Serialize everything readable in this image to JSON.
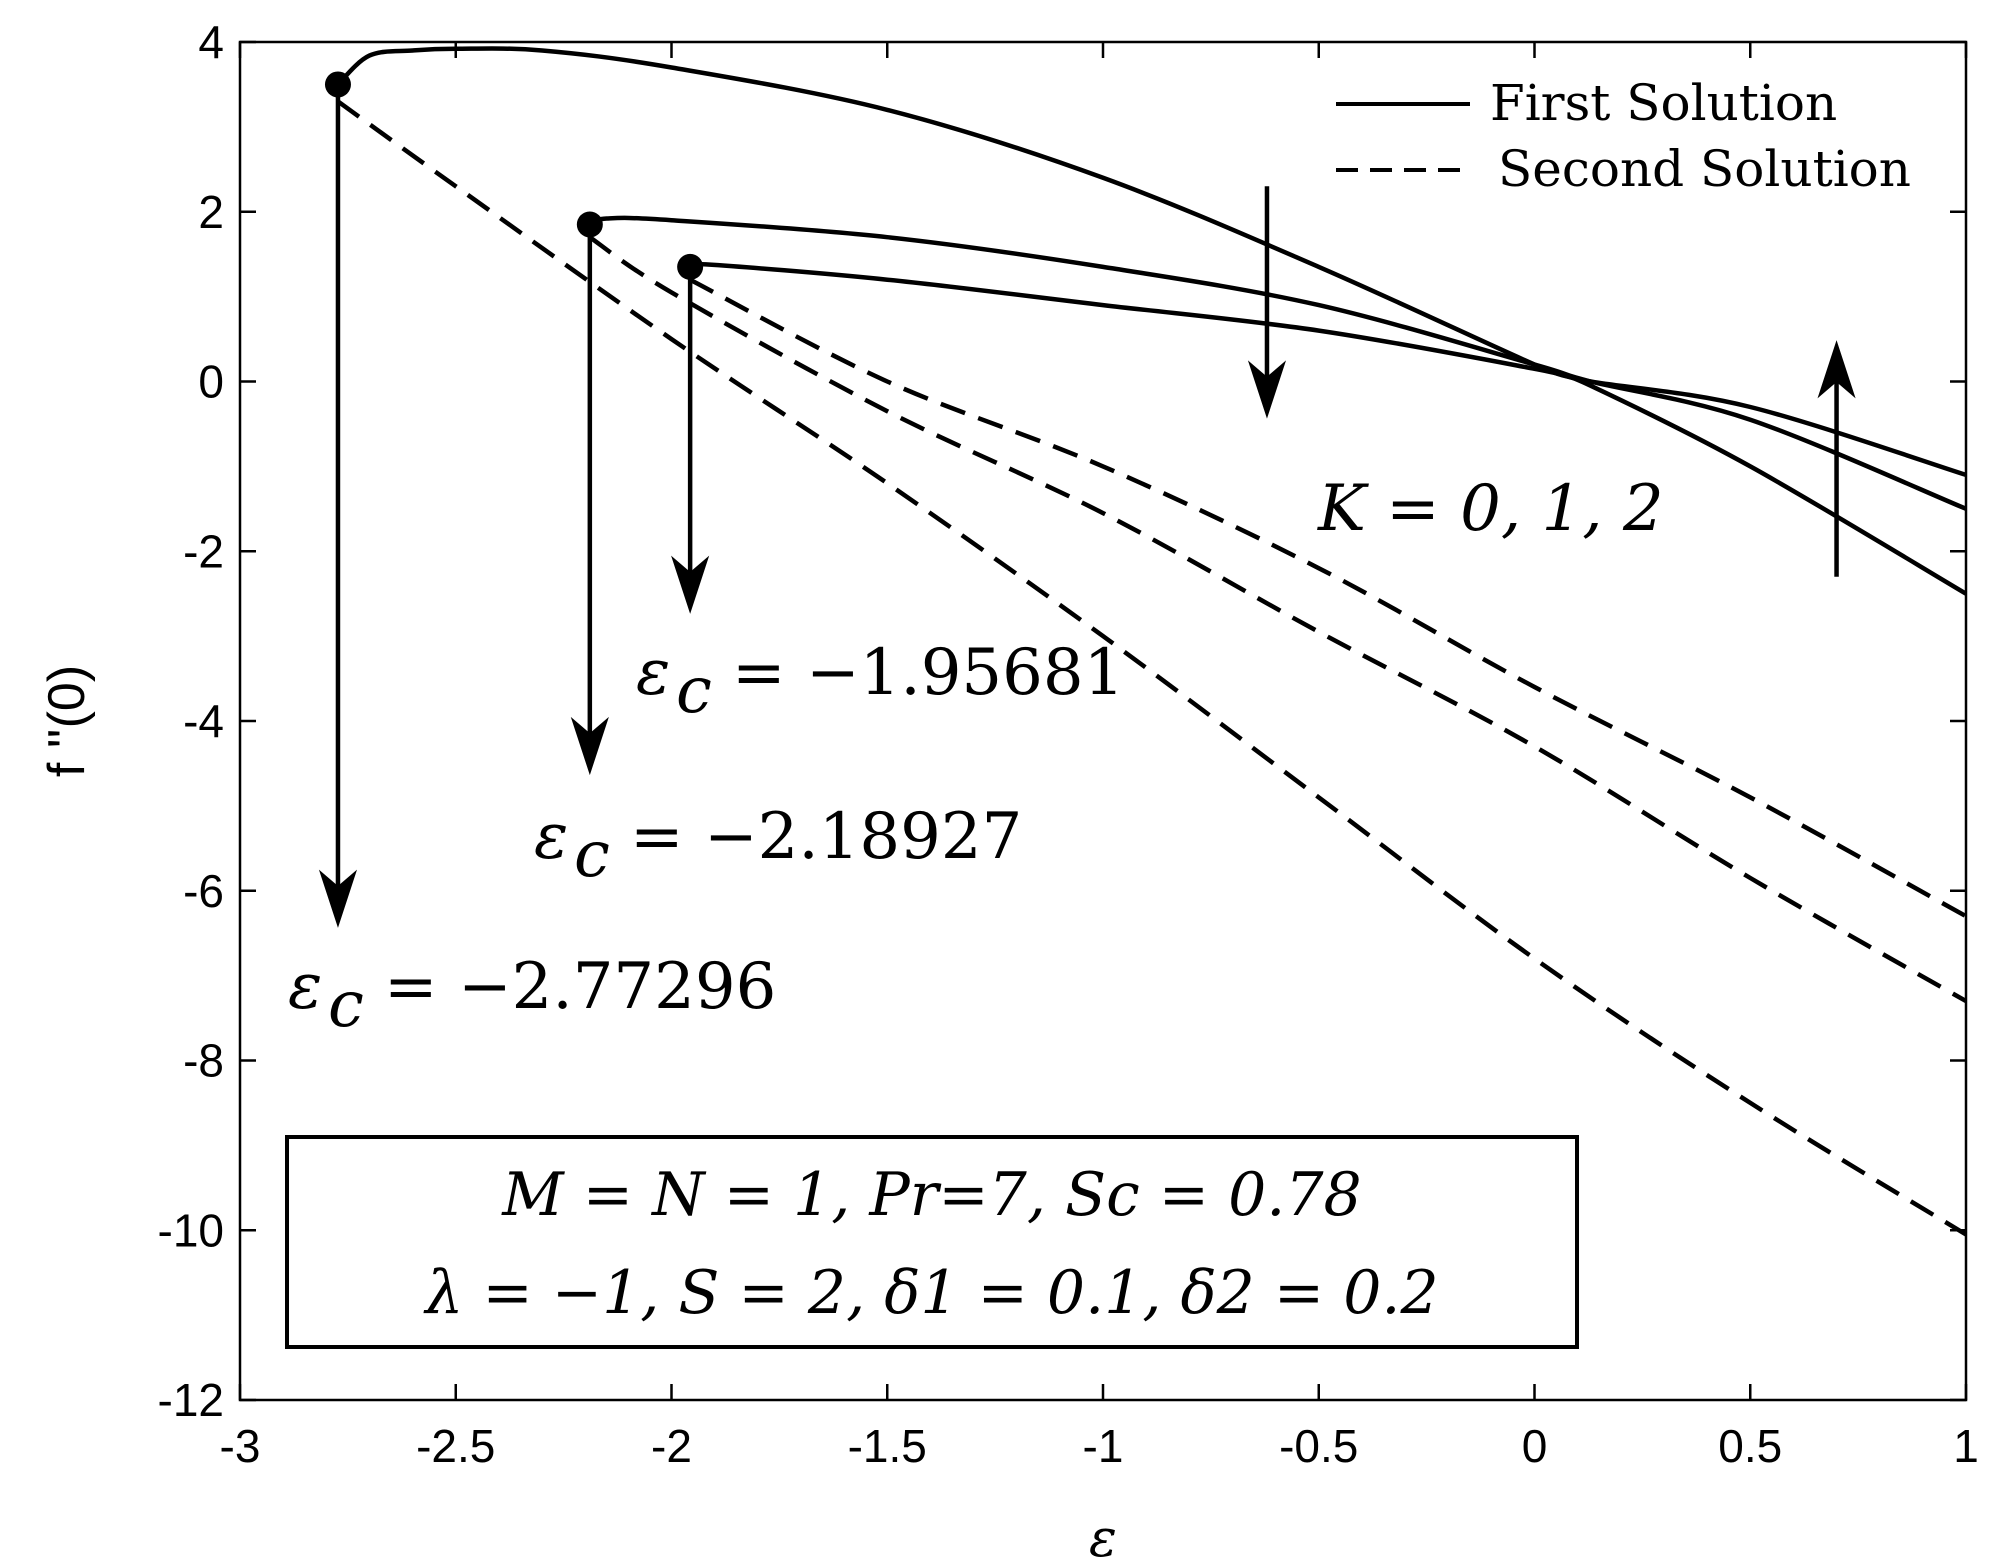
{
  "chart_data": {
    "type": "line",
    "xlabel": "ε",
    "ylabel": "f ''(0)",
    "xlim": [
      -3,
      1
    ],
    "ylim": [
      -12,
      4
    ],
    "xticks": [
      "-3",
      "-2.5",
      "-2",
      "-1.5",
      "-1",
      "-0.5",
      "0",
      "0.5",
      "1"
    ],
    "yticks": [
      "4",
      "2",
      "0",
      "-2",
      "-4",
      "-6",
      "-8",
      "-10",
      "-12"
    ],
    "legend": {
      "position": "top-right",
      "entries": [
        {
          "label": "First Solution",
          "style": "solid"
        },
        {
          "label": "Second Solution",
          "style": "dashed"
        }
      ]
    },
    "series": [
      {
        "group": "K=0",
        "style": "solid",
        "x": [
          -2.77296,
          -2.7,
          -2.6,
          -2.5,
          -2.3,
          -2.0,
          -1.5,
          -1.0,
          -0.5,
          0.0,
          0.13,
          0.5,
          1.0
        ],
        "y": [
          3.5,
          3.84,
          3.9,
          3.92,
          3.9,
          3.7,
          3.2,
          2.4,
          1.35,
          0.2,
          -0.05,
          -1.0,
          -2.5
        ]
      },
      {
        "group": "K=0",
        "style": "dashed",
        "x": [
          -2.77296,
          -2.5,
          -2.0,
          -1.5,
          -1.0,
          -0.5,
          0.0,
          0.5,
          1.0
        ],
        "y": [
          3.3,
          2.3,
          0.5,
          -1.2,
          -3.0,
          -4.9,
          -6.8,
          -8.5,
          -10.05
        ]
      },
      {
        "group": "K=1",
        "style": "solid",
        "x": [
          -2.18927,
          -2.15,
          -2.0,
          -1.5,
          -1.0,
          -0.5,
          0.0,
          0.13,
          0.5,
          1.0
        ],
        "y": [
          1.85,
          1.92,
          1.9,
          1.7,
          1.35,
          0.9,
          0.2,
          0.0,
          -0.45,
          -1.5
        ]
      },
      {
        "group": "K=1",
        "style": "dashed",
        "x": [
          -2.18927,
          -2.0,
          -1.5,
          -1.0,
          -0.5,
          0.0,
          0.5,
          1.0
        ],
        "y": [
          1.7,
          1.05,
          -0.35,
          -1.55,
          -2.95,
          -4.3,
          -5.85,
          -7.3
        ]
      },
      {
        "group": "K=2",
        "style": "solid",
        "x": [
          -1.95681,
          -1.92,
          -1.5,
          -1.0,
          -0.5,
          0.0,
          0.13,
          0.5,
          1.0
        ],
        "y": [
          1.35,
          1.38,
          1.2,
          0.9,
          0.6,
          0.15,
          0.0,
          -0.3,
          -1.1
        ]
      },
      {
        "group": "K=2",
        "style": "dashed",
        "x": [
          -1.95681,
          -1.5,
          -1.0,
          -0.5,
          0.0,
          0.5,
          1.0
        ],
        "y": [
          1.2,
          0.0,
          -1.0,
          -2.2,
          -3.6,
          -4.9,
          -6.3
        ]
      }
    ],
    "critical_points": [
      {
        "x": -2.77296,
        "y": 3.5,
        "label": "−2.77296"
      },
      {
        "x": -2.18927,
        "y": 1.85,
        "label": "−2.18927"
      },
      {
        "x": -1.95681,
        "y": 1.35,
        "label": "−1.95681"
      }
    ],
    "arrows": [
      {
        "x": -2.77296,
        "y_from": 3.5,
        "y_to": -6.4
      },
      {
        "x": -2.18927,
        "y_from": 1.85,
        "y_to": -4.6
      },
      {
        "x": -1.95681,
        "y_from": 1.35,
        "y_to": -2.7
      },
      {
        "x": -0.62,
        "y_from": 2.3,
        "y_to": -0.4
      },
      {
        "x": 0.7,
        "y_from": -2.3,
        "y_to": 0.45
      }
    ],
    "annotations": {
      "eps_c_symbol": "ε",
      "eps_c_sub": "c",
      "equals": "=",
      "k_label": "K = 0, 1, 2"
    },
    "params_box": {
      "line1": "M = N = 1, Pr=7, Sc = 0.78",
      "line2": "λ = −1, S = 2, δ1 = 0.1, δ2 = 0.2"
    }
  }
}
